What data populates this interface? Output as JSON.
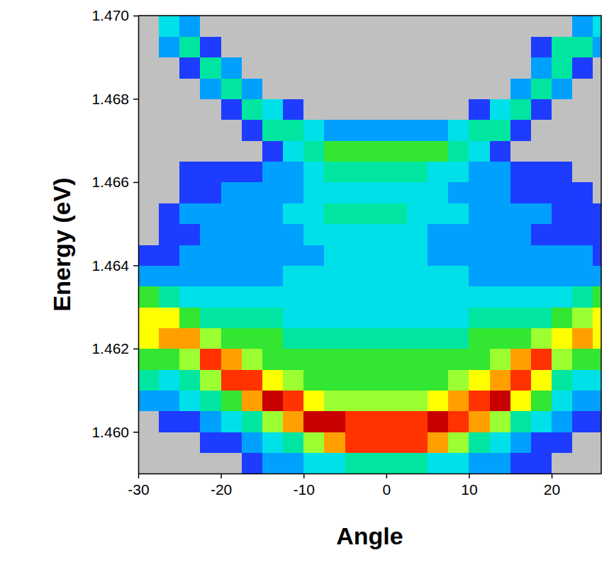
{
  "chart_data": {
    "type": "heatmap",
    "x_label": "Angle",
    "y_label": "Energy (eV)",
    "xlim": [
      -30,
      26
    ],
    "xticks": [
      -30,
      -20,
      -10,
      0,
      10,
      20
    ],
    "ylim": [
      1.459,
      1.47
    ],
    "yticks": [
      {
        "value": 1.46,
        "label": "1.460"
      },
      {
        "value": 1.462,
        "label": "1.462"
      },
      {
        "value": 1.464,
        "label": "1.464"
      },
      {
        "value": 1.466,
        "label": "1.466"
      },
      {
        "value": 1.468,
        "label": "1.468"
      },
      {
        "value": 1.47,
        "label": "1.470"
      }
    ],
    "grid": false,
    "x": [
      -28.75,
      -26.25,
      -23.75,
      -21.25,
      -18.75,
      -16.25,
      -13.75,
      -11.25,
      -8.75,
      -6.25,
      -3.75,
      -1.25,
      1.25,
      3.75,
      6.25,
      8.75,
      11.25,
      13.75,
      16.25,
      18.75,
      21.25,
      23.75,
      26.25
    ],
    "y": [
      1.45925,
      1.45975,
      1.46025,
      1.46075,
      1.46125,
      1.46175,
      1.46225,
      1.46275,
      1.46325,
      1.46375,
      1.46425,
      1.46475,
      1.46525,
      1.46575,
      1.46625,
      1.46675,
      1.46725,
      1.46775,
      1.46825,
      1.46875,
      1.46925,
      1.46975
    ],
    "z": [
      [
        0,
        0,
        0,
        0,
        0,
        1,
        2,
        2,
        3,
        3,
        4,
        4,
        4,
        4,
        3,
        3,
        2,
        2,
        1,
        1,
        0,
        0,
        0
      ],
      [
        0,
        0,
        0,
        1,
        1,
        2,
        3,
        4,
        6,
        8,
        9,
        9,
        9,
        9,
        8,
        6,
        4,
        3,
        2,
        1,
        1,
        0,
        0
      ],
      [
        0,
        1,
        1,
        2,
        3,
        4,
        6,
        8,
        10,
        10,
        9,
        9,
        9,
        9,
        10,
        9,
        8,
        6,
        4,
        3,
        2,
        1,
        1
      ],
      [
        2,
        2,
        3,
        4,
        5,
        8,
        10,
        9,
        7,
        6,
        6,
        6,
        6,
        6,
        7,
        8,
        9,
        10,
        7,
        5,
        3,
        2,
        2
      ],
      [
        4,
        3,
        4,
        6,
        9,
        9,
        7,
        6,
        5,
        5,
        5,
        5,
        5,
        5,
        5,
        6,
        7,
        8,
        9,
        7,
        4,
        3,
        3
      ],
      [
        5,
        5,
        6,
        9,
        8,
        6,
        5,
        5,
        5,
        5,
        5,
        5,
        5,
        5,
        5,
        5,
        5,
        6,
        8,
        9,
        6,
        5,
        5
      ],
      [
        7,
        8,
        8,
        6,
        5,
        5,
        5,
        4,
        4,
        4,
        4,
        4,
        4,
        4,
        4,
        4,
        5,
        5,
        5,
        6,
        7,
        8,
        7
      ],
      [
        7,
        7,
        5,
        4,
        4,
        4,
        4,
        3,
        3,
        3,
        3,
        3,
        3,
        3,
        3,
        3,
        4,
        4,
        4,
        4,
        5,
        6,
        7
      ],
      [
        5,
        4,
        3,
        3,
        3,
        3,
        3,
        3,
        3,
        3,
        3,
        3,
        3,
        3,
        3,
        3,
        3,
        3,
        3,
        3,
        3,
        4,
        5
      ],
      [
        2,
        2,
        2,
        2,
        2,
        2,
        2,
        3,
        3,
        3,
        3,
        3,
        3,
        3,
        3,
        3,
        2,
        2,
        2,
        2,
        2,
        2,
        2
      ],
      [
        1,
        1,
        2,
        2,
        2,
        2,
        2,
        2,
        2,
        3,
        3,
        3,
        3,
        3,
        2,
        2,
        2,
        2,
        2,
        2,
        2,
        2,
        1
      ],
      [
        0,
        1,
        1,
        2,
        2,
        2,
        2,
        2,
        3,
        3,
        3,
        3,
        3,
        3,
        2,
        2,
        2,
        2,
        2,
        1,
        1,
        1,
        1
      ],
      [
        0,
        1,
        2,
        2,
        2,
        2,
        2,
        3,
        3,
        4,
        4,
        4,
        4,
        3,
        3,
        3,
        2,
        2,
        2,
        2,
        1,
        1,
        1
      ],
      [
        0,
        0,
        1,
        1,
        2,
        2,
        2,
        2,
        3,
        3,
        3,
        3,
        3,
        3,
        3,
        2,
        2,
        2,
        1,
        1,
        1,
        1,
        0
      ],
      [
        0,
        0,
        1,
        1,
        1,
        1,
        2,
        2,
        3,
        4,
        4,
        4,
        4,
        4,
        3,
        3,
        2,
        2,
        1,
        1,
        1,
        0,
        0
      ],
      [
        0,
        0,
        0,
        0,
        0,
        0,
        1,
        3,
        4,
        5,
        5,
        5,
        5,
        5,
        5,
        4,
        3,
        1,
        0,
        0,
        0,
        0,
        0
      ],
      [
        0,
        0,
        0,
        0,
        0,
        1,
        4,
        4,
        3,
        2,
        2,
        2,
        2,
        2,
        2,
        3,
        4,
        4,
        1,
        0,
        0,
        0,
        0
      ],
      [
        0,
        0,
        0,
        0,
        1,
        4,
        3,
        1,
        0,
        0,
        0,
        0,
        0,
        0,
        0,
        0,
        1,
        3,
        4,
        1,
        0,
        0,
        0
      ],
      [
        0,
        0,
        0,
        2,
        4,
        2,
        0,
        0,
        0,
        0,
        0,
        0,
        0,
        0,
        0,
        0,
        0,
        0,
        2,
        4,
        2,
        0,
        0
      ],
      [
        0,
        0,
        1,
        4,
        2,
        0,
        0,
        0,
        0,
        0,
        0,
        0,
        0,
        0,
        0,
        0,
        0,
        0,
        0,
        2,
        4,
        1,
        0
      ],
      [
        0,
        2,
        4,
        1,
        0,
        0,
        0,
        0,
        0,
        0,
        0,
        0,
        0,
        0,
        0,
        0,
        0,
        0,
        0,
        1,
        4,
        4,
        2
      ],
      [
        0,
        3,
        2,
        0,
        0,
        0,
        0,
        0,
        0,
        0,
        0,
        0,
        0,
        0,
        0,
        0,
        0,
        0,
        0,
        0,
        0,
        2,
        3
      ]
    ]
  }
}
